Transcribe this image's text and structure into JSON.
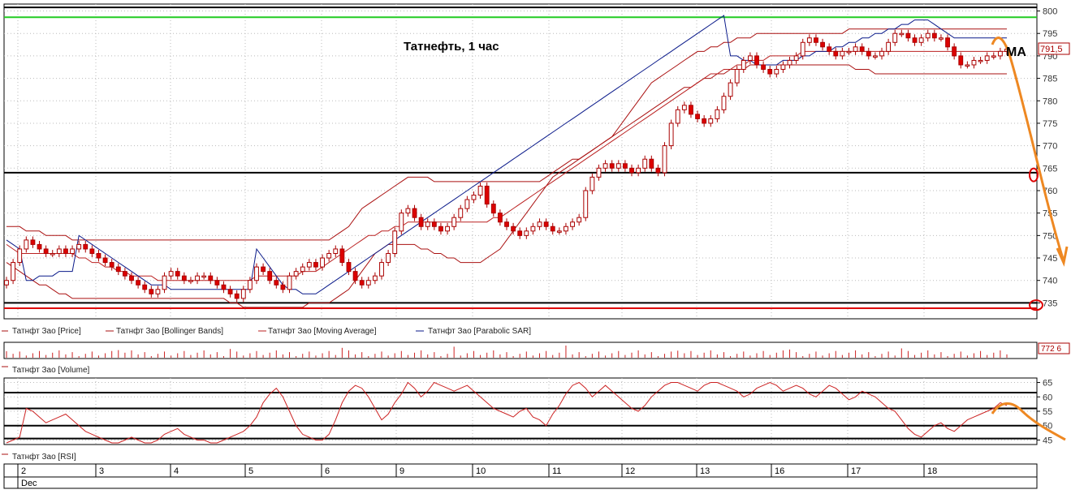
{
  "chart_data": {
    "type": "candlestick",
    "title": "Татнефть,  1 час",
    "annotation_ma": "MA",
    "price_panel": {
      "ylim": [
        732,
        801
      ],
      "yticks": [
        735,
        740,
        745,
        750,
        755,
        760,
        765,
        770,
        775,
        780,
        785,
        790,
        795,
        800
      ],
      "last_price_label": "791,5",
      "levels": [
        {
          "value": 800.8,
          "color": "#000000"
        },
        {
          "value": 798.6,
          "color": "#22cc22"
        },
        {
          "value": 764.0,
          "color": "#000000"
        },
        {
          "value": 735.0,
          "color": "#000000"
        },
        {
          "value": 733.8,
          "color": "#dd0000"
        }
      ],
      "candles_close": [
        740,
        744,
        747,
        749,
        748,
        747,
        746,
        746,
        747,
        746,
        747,
        748,
        747,
        746,
        745,
        744,
        743,
        742,
        741,
        740,
        739,
        738,
        737,
        738,
        741,
        742,
        741,
        740,
        740,
        741,
        741,
        740,
        739,
        738,
        737,
        736,
        738,
        740,
        743,
        742,
        740,
        739,
        738,
        741,
        742,
        743,
        744,
        743,
        745,
        746,
        747,
        744,
        742,
        740,
        739,
        740,
        741,
        744,
        746,
        751,
        755,
        756,
        754,
        752,
        753,
        752,
        751,
        752,
        754,
        756,
        758,
        759,
        761,
        757,
        755,
        753,
        752,
        751,
        750,
        751,
        752,
        753,
        752,
        751,
        751,
        752,
        753,
        754,
        760,
        763,
        765,
        766,
        765,
        766,
        765,
        764,
        765,
        767,
        765,
        764,
        770,
        775,
        778,
        779,
        777,
        776,
        775,
        776,
        778,
        781,
        784,
        787,
        789,
        790,
        788,
        787,
        786,
        787,
        788,
        789,
        790,
        793,
        794,
        793,
        792,
        791,
        790,
        791,
        791,
        792,
        791,
        790,
        790,
        791,
        793,
        795,
        795,
        794,
        793,
        794,
        795,
        794,
        794,
        792,
        790,
        788,
        788,
        789,
        789,
        790,
        790,
        791,
        791.5
      ],
      "bollinger_upper": [
        752,
        752,
        752,
        751,
        751,
        751,
        750,
        750,
        750,
        750,
        749,
        749,
        749,
        749,
        749,
        749,
        749,
        749,
        749,
        749,
        749,
        749,
        749,
        749,
        749,
        749,
        749,
        749,
        749,
        749,
        749,
        749,
        749,
        749,
        749,
        749,
        749,
        749,
        749,
        749,
        749,
        749,
        749,
        749,
        749,
        749,
        749,
        749,
        749,
        749,
        750,
        751,
        752,
        754,
        756,
        757,
        758,
        759,
        760,
        761,
        762,
        763,
        763,
        763,
        763,
        762,
        762,
        762,
        762,
        762,
        762,
        762,
        762,
        762,
        762,
        762,
        762,
        762,
        762,
        762,
        762,
        762,
        763,
        764,
        765,
        766,
        767,
        767,
        768,
        769,
        770,
        771,
        772,
        774,
        776,
        778,
        780,
        782,
        784,
        785,
        786,
        787,
        788,
        789,
        790,
        791,
        791,
        792,
        792,
        793,
        793,
        794,
        794,
        794,
        795,
        795,
        795,
        795,
        795,
        795,
        795,
        795,
        795,
        795,
        795,
        795,
        795,
        795,
        796,
        796,
        796,
        796,
        796,
        796,
        796,
        796,
        796,
        796,
        796,
        796,
        796,
        796,
        796,
        796,
        796,
        796,
        796,
        796,
        796,
        796,
        796,
        796,
        796
      ],
      "bollinger_lower": [
        744,
        743,
        742,
        741,
        740,
        739,
        739,
        738,
        737,
        737,
        736,
        736,
        736,
        736,
        736,
        736,
        736,
        736,
        736,
        736,
        736,
        736,
        736,
        736,
        736,
        736,
        736,
        736,
        736,
        736,
        736,
        736,
        736,
        736,
        735,
        735,
        734,
        734,
        734,
        734,
        734,
        734,
        734,
        734,
        734,
        734,
        735,
        735,
        735,
        735,
        736,
        737,
        738,
        740,
        742,
        744,
        746,
        747,
        748,
        748,
        748,
        748,
        748,
        747,
        747,
        746,
        746,
        745,
        745,
        744,
        744,
        744,
        744,
        745,
        746,
        747,
        749,
        751,
        753,
        755,
        757,
        759,
        761,
        763,
        764,
        765,
        766,
        767,
        768,
        769,
        770,
        771,
        772,
        773,
        774,
        775,
        776,
        777,
        778,
        779,
        780,
        781,
        782,
        783,
        783,
        784,
        785,
        785,
        786,
        786,
        787,
        787,
        787,
        788,
        788,
        788,
        788,
        788,
        788,
        788,
        788,
        788,
        788,
        788,
        788,
        788,
        788,
        788,
        788,
        787,
        787,
        787,
        786,
        786,
        786,
        786,
        786,
        786,
        786,
        786,
        786,
        786,
        786,
        786,
        786,
        786,
        786,
        786,
        786,
        786,
        786,
        786,
        786
      ],
      "moving_average": [
        748,
        747,
        746,
        746,
        746,
        746,
        746,
        746,
        746,
        746,
        746,
        745,
        745,
        744,
        744,
        743,
        743,
        742,
        742,
        741,
        741,
        741,
        741,
        740,
        740,
        740,
        740,
        740,
        740,
        740,
        740,
        740,
        740,
        740,
        740,
        740,
        740,
        740,
        741,
        741,
        741,
        741,
        741,
        741,
        741,
        742,
        742,
        742,
        743,
        744,
        745,
        746,
        747,
        748,
        749,
        750,
        750,
        751,
        751,
        752,
        752,
        753,
        753,
        753,
        753,
        753,
        753,
        753,
        753,
        753,
        753,
        753,
        753,
        753,
        754,
        754,
        755,
        756,
        757,
        758,
        759,
        760,
        761,
        762,
        763,
        764,
        765,
        766,
        767,
        768,
        769,
        770,
        771,
        772,
        773,
        774,
        775,
        776,
        777,
        778,
        779,
        780,
        781,
        782,
        783,
        784,
        785,
        786,
        786,
        787,
        787,
        788,
        788,
        789,
        789,
        789,
        790,
        790,
        790,
        790,
        790,
        791,
        791,
        791,
        791,
        791,
        791,
        791,
        791,
        791,
        791,
        791,
        791,
        791,
        791,
        791,
        791,
        791,
        791,
        791,
        791,
        791,
        791,
        791,
        791,
        791,
        791,
        791,
        791,
        791,
        791,
        791,
        791
      ],
      "parabolic_sar": [
        749,
        748,
        747,
        740,
        740,
        741,
        741,
        741,
        742,
        742,
        742,
        750,
        749,
        748,
        747,
        746,
        745,
        744,
        743,
        742,
        741,
        740,
        739,
        739,
        739,
        738,
        738,
        738,
        738,
        738,
        738,
        738,
        738,
        738,
        738,
        738,
        738,
        738,
        747,
        745,
        743,
        741,
        739,
        738,
        738,
        737,
        737,
        737,
        738,
        739,
        740,
        741,
        742,
        743,
        744,
        745,
        746,
        747,
        748,
        749,
        750,
        751,
        752,
        753,
        754,
        755,
        756,
        757,
        758,
        759,
        760,
        761,
        762,
        763,
        764,
        765,
        766,
        767,
        768,
        769,
        770,
        771,
        772,
        773,
        774,
        775,
        776,
        777,
        778,
        779,
        780,
        781,
        782,
        783,
        784,
        785,
        786,
        787,
        788,
        789,
        790,
        791,
        792,
        793,
        794,
        795,
        796,
        797,
        798,
        799,
        790,
        790,
        789,
        789,
        788,
        788,
        788,
        788,
        789,
        789,
        789,
        790,
        790,
        791,
        791,
        791,
        792,
        792,
        793,
        793,
        794,
        794,
        795,
        795,
        796,
        796,
        797,
        797,
        798,
        798,
        798,
        797,
        796,
        795,
        794,
        794,
        794,
        794,
        794,
        794,
        794,
        794,
        794
      ]
    },
    "volume_panel": {
      "label": "772 6"
    },
    "rsi_panel": {
      "ylim": [
        44,
        66
      ],
      "yticks": [
        45,
        50,
        55,
        60,
        65
      ],
      "levels": [
        45.5,
        50,
        56,
        61.5
      ],
      "values": [
        44,
        45,
        46,
        56,
        55,
        53,
        51,
        52,
        53,
        54,
        52,
        50,
        48,
        47,
        46,
        45,
        44,
        44,
        45,
        46,
        45,
        44,
        44,
        45,
        47,
        48,
        49,
        47,
        46,
        45,
        45,
        44,
        44,
        45,
        46,
        47,
        48,
        50,
        53,
        58,
        61,
        63,
        60,
        55,
        50,
        47,
        46,
        45,
        45,
        47,
        52,
        58,
        62,
        64,
        63,
        60,
        56,
        52,
        54,
        58,
        61,
        65,
        63,
        60,
        62,
        65,
        64,
        63,
        62,
        63,
        64,
        62,
        60,
        58,
        56,
        55,
        54,
        53,
        55,
        56,
        53,
        52,
        50,
        54,
        57,
        61,
        64,
        65,
        63,
        60,
        62,
        64,
        62,
        60,
        58,
        56,
        55,
        57,
        60,
        62,
        64,
        65,
        65,
        64,
        63,
        62,
        64,
        65,
        65,
        64,
        63,
        62,
        60,
        61,
        63,
        64,
        65,
        64,
        62,
        63,
        64,
        63,
        61,
        60,
        62,
        64,
        63,
        61,
        59,
        60,
        62,
        61,
        60,
        58,
        56,
        55,
        52,
        49,
        47,
        46,
        48,
        50,
        51,
        49,
        48,
        50,
        52,
        53,
        54,
        55,
        56,
        58,
        57
      ],
      "forecast_end": 45
    },
    "legends": {
      "price": [
        "Татнфт Зао [Price]",
        "Татнфт Зао [Bollinger Bands]",
        "Татнфт Зао [Moving Average]",
        "Татнфт Зао [Parabolic SAR]"
      ],
      "volume": "Татнфт Зао [Volume]",
      "rsi": "Татнфт Зао [RSI]"
    },
    "x_axis": {
      "dates": [
        "2",
        "3",
        "4",
        "5",
        "6",
        "9",
        "10",
        "11",
        "12",
        "13",
        "16",
        "17",
        "18"
      ],
      "month": "Dec"
    }
  },
  "colors": {
    "up": "#ffffff",
    "down": "#dd0000",
    "candle_outline": "#aa0000",
    "bollinger": "#aa1111",
    "moving_average": "#bb2222",
    "sar": "#0a1a8a",
    "rsi": "#cc2222",
    "forecast": "#ee8822",
    "grid": "#bbbbbb"
  }
}
